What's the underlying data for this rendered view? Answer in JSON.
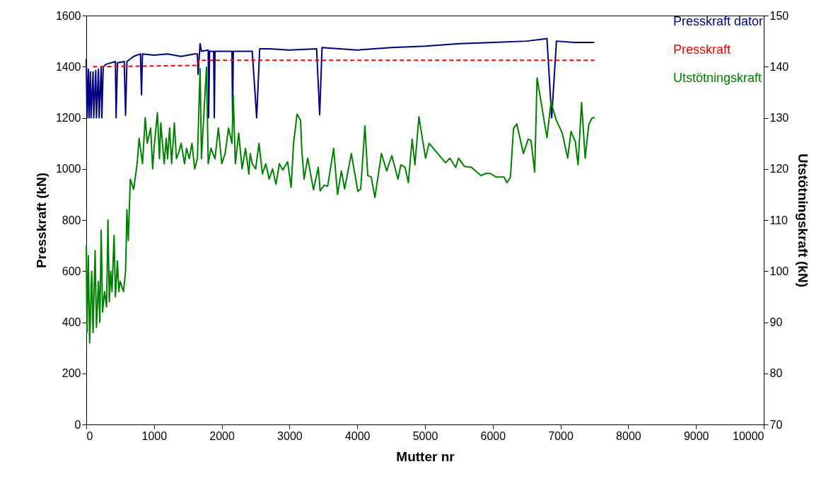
{
  "chart_data": {
    "type": "line",
    "xlabel": "Mutter nr",
    "ylabel": "Presskraft (kN)",
    "y2label": "Utstötningskraft (kN)",
    "xlim": [
      0,
      10000
    ],
    "xticks": [
      0,
      1000,
      2000,
      3000,
      4000,
      5000,
      6000,
      7000,
      8000,
      9000,
      10000
    ],
    "ylim": [
      0,
      1600
    ],
    "yticks": [
      0,
      200,
      400,
      600,
      800,
      1000,
      1200,
      1400,
      1600
    ],
    "y2lim": [
      70,
      150
    ],
    "y2ticks": [
      70,
      80,
      90,
      100,
      110,
      120,
      130,
      140,
      150
    ],
    "grid": false,
    "legend": "top right",
    "marker": "none",
    "series": [
      {
        "name": "Presskraft dator",
        "color": "#000080",
        "line_style": "solid",
        "x": [
          0,
          10,
          30,
          40,
          60,
          70,
          100,
          110,
          140,
          150,
          180,
          190,
          220,
          230,
          250,
          300,
          430,
          440,
          460,
          560,
          580,
          600,
          700,
          800,
          815,
          830,
          1000,
          1200,
          1400,
          1600,
          1640,
          1650,
          1680,
          1700,
          1800,
          1806,
          1820,
          1880,
          1890,
          1900,
          2150,
          2160,
          2170,
          2450,
          2515,
          2560,
          2700,
          3000,
          3400,
          3445,
          3480,
          4000,
          4500,
          5000,
          5500,
          6000,
          6500,
          6800,
          6870,
          6940,
          7200,
          7500
        ],
        "values": [
          1430,
          1200,
          1390,
          1200,
          1380,
          1200,
          1380,
          1200,
          1385,
          1200,
          1390,
          1200,
          1395,
          1200,
          1400,
          1410,
          1420,
          1200,
          1415,
          1420,
          1210,
          1420,
          1440,
          1450,
          1290,
          1450,
          1445,
          1450,
          1440,
          1450,
          1450,
          1370,
          1490,
          1460,
          1465,
          1200,
          1460,
          1460,
          1200,
          1460,
          1460,
          1200,
          1460,
          1460,
          1200,
          1470,
          1470,
          1465,
          1470,
          1212,
          1475,
          1465,
          1475,
          1480,
          1490,
          1495,
          1500,
          1510,
          1200,
          1500,
          1495,
          1495
        ]
      },
      {
        "name": "Presskraft",
        "color": "#ff0000",
        "line_style": "dashed",
        "x": [
          100,
          1650,
          1660,
          7500
        ],
        "values": [
          1400,
          1405,
          1425,
          1425
        ]
      },
      {
        "name": "Utstötningskraft",
        "color": "#008000",
        "line_style": "solid",
        "axis": "y2",
        "x": [
          0,
          10,
          30,
          50,
          80,
          100,
          130,
          150,
          180,
          200,
          220,
          240,
          270,
          300,
          320,
          340,
          360,
          380,
          410,
          430,
          460,
          480,
          500,
          550,
          580,
          600,
          620,
          650,
          700,
          750,
          780,
          800,
          830,
          870,
          900,
          950,
          980,
          1000,
          1050,
          1080,
          1100,
          1150,
          1180,
          1200,
          1230,
          1260,
          1300,
          1330,
          1360,
          1400,
          1450,
          1480,
          1520,
          1560,
          1600,
          1640,
          1680,
          1700,
          1774,
          1800,
          1840,
          1900,
          1950,
          2000,
          2050,
          2100,
          2150,
          2170,
          2200,
          2250,
          2300,
          2350,
          2400,
          2420,
          2450,
          2500,
          2550,
          2600,
          2650,
          2700,
          2750,
          2800,
          2850,
          2902,
          2972,
          3024,
          3059,
          3111,
          3163,
          3181,
          3215,
          3268,
          3354,
          3424,
          3452,
          3511,
          3563,
          3651,
          3709,
          3766,
          3814,
          3912,
          4009,
          4051,
          4113,
          4155,
          4207,
          4260,
          4357,
          4434,
          4510,
          4601,
          4643,
          4705,
          4754,
          4810,
          4851,
          4910,
          5008,
          5060,
          5304,
          5366,
          5453,
          5495,
          5582,
          5686,
          5826,
          5895,
          5965,
          6052,
          6167,
          6209,
          6261,
          6306,
          6355,
          6452,
          6522,
          6564,
          6619,
          6654,
          6800,
          6859,
          6939,
          7026,
          7106,
          7155,
          7217,
          7259,
          7311,
          7364,
          7416,
          7461,
          7503
        ],
        "values": [
          105,
          88,
          103,
          86,
          100,
          88,
          104,
          89,
          98,
          90,
          108,
          92,
          96,
          93,
          110,
          94,
          100,
          96,
          107,
          95,
          102,
          96,
          98,
          96,
          100,
          112,
          106,
          118,
          116,
          121,
          126,
          124,
          121,
          130,
          125,
          128,
          120,
          124,
          131,
          122,
          129,
          121,
          126,
          122,
          128,
          121,
          129,
          122,
          123,
          125,
          121,
          124,
          122,
          125,
          120,
          122,
          139.6,
          122,
          139.9,
          121,
          124,
          122,
          128,
          121,
          123,
          128,
          125,
          134.4,
          121,
          127,
          120,
          124,
          119,
          123,
          121,
          120,
          125,
          119,
          121,
          118,
          120,
          117,
          121,
          119.8,
          121.4,
          116.4,
          124.9,
          130.7,
          129.5,
          123.7,
          118.0,
          122.1,
          115.9,
          120.3,
          115.7,
          116.8,
          116.6,
          124.0,
          115.0,
          119.6,
          116.1,
          123.0,
          115.6,
          116.1,
          128.4,
          118.7,
          118.4,
          114.4,
          123.0,
          119.6,
          122.6,
          118.0,
          120.8,
          120.3,
          117.3,
          125.8,
          120.8,
          130.2,
          122.1,
          125.0,
          121.2,
          122.1,
          120.3,
          122.1,
          120.5,
          120.3,
          118.7,
          119.1,
          119.1,
          118.4,
          118.4,
          117.3,
          118.4,
          127.9,
          128.8,
          123.0,
          125.8,
          125.6,
          119.4,
          137.8,
          126.1,
          133.0,
          129.5,
          127.0,
          122.1,
          127.3,
          125.4,
          120.8,
          133.0,
          122.1,
          128.6,
          129.9,
          130.1
        ]
      }
    ]
  }
}
